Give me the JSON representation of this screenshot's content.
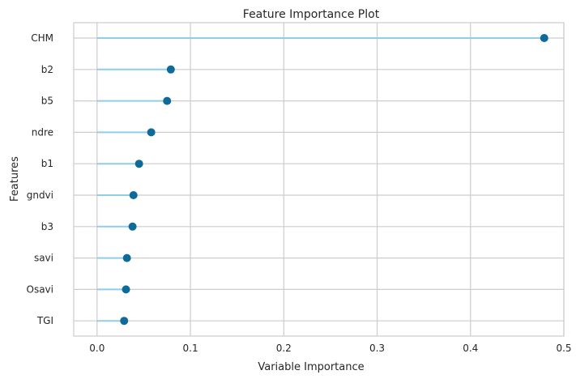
{
  "chart_data": {
    "type": "lollipop",
    "title": "Feature Importance Plot",
    "xlabel": "Variable Importance",
    "ylabel": "Features",
    "xlim": [
      -0.025,
      0.5
    ],
    "xticks": [
      0.0,
      0.1,
      0.2,
      0.3,
      0.4,
      0.5
    ],
    "xtick_labels": [
      "0.0",
      "0.1",
      "0.2",
      "0.3",
      "0.4",
      "0.5"
    ],
    "categories": [
      "CHM",
      "b2",
      "b5",
      "ndre",
      "b1",
      "gndvi",
      "b3",
      "savi",
      "Osavi",
      "TGI"
    ],
    "values": [
      0.479,
      0.079,
      0.075,
      0.058,
      0.045,
      0.039,
      0.038,
      0.032,
      0.031,
      0.029
    ],
    "grid": true,
    "stem_color": "#8fcde8",
    "marker_color": "#0e6b99"
  }
}
